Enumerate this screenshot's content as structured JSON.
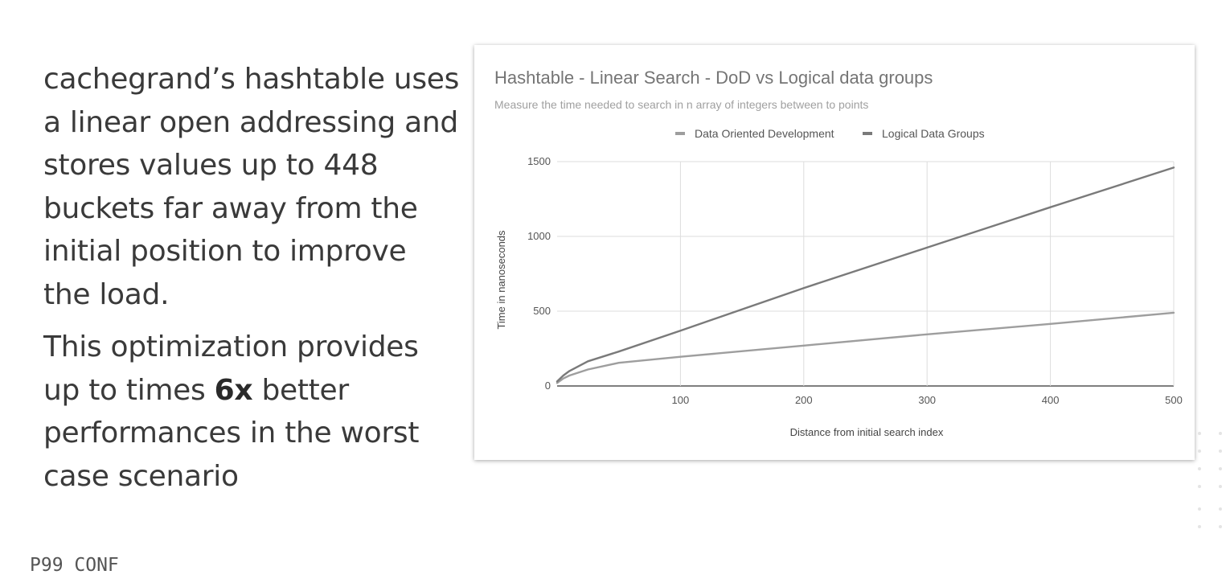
{
  "slide": {
    "paragraph1": "cachegrand’s hashtable uses a linear open addressing and stores values up to 448 buckets far away from the initial position to improve the load.",
    "paragraph2_before": "This optimization provides up to times ",
    "paragraph2_bold": "6x",
    "paragraph2_after": " better performances in the worst case scenario",
    "logo": "P99 CONF"
  },
  "chart_data": {
    "type": "line",
    "title": "Hashtable - Linear Search - DoD vs Logical data groups",
    "subtitle": "Measure the time needed to search in n array of integers between to points",
    "xlabel": "Distance from initial search index",
    "ylabel": "Time in nanoseconds",
    "xlim": [
      0,
      500
    ],
    "ylim": [
      0,
      1500
    ],
    "xticks": [
      100,
      200,
      300,
      400,
      500
    ],
    "yticks": [
      0,
      500,
      1000,
      1500
    ],
    "grid": true,
    "legend_position": "top",
    "series": [
      {
        "name": "Data Oriented Development",
        "color": "#9e9e9e",
        "x": [
          0,
          5,
          10,
          25,
          50,
          100,
          200,
          300,
          400,
          500
        ],
        "y": [
          20,
          50,
          70,
          110,
          155,
          195,
          270,
          345,
          415,
          490
        ]
      },
      {
        "name": "Logical Data Groups",
        "color": "#7a7a7a",
        "x": [
          0,
          5,
          10,
          25,
          50,
          100,
          200,
          300,
          400,
          500
        ],
        "y": [
          30,
          70,
          100,
          165,
          230,
          370,
          655,
          925,
          1195,
          1460
        ]
      }
    ]
  }
}
